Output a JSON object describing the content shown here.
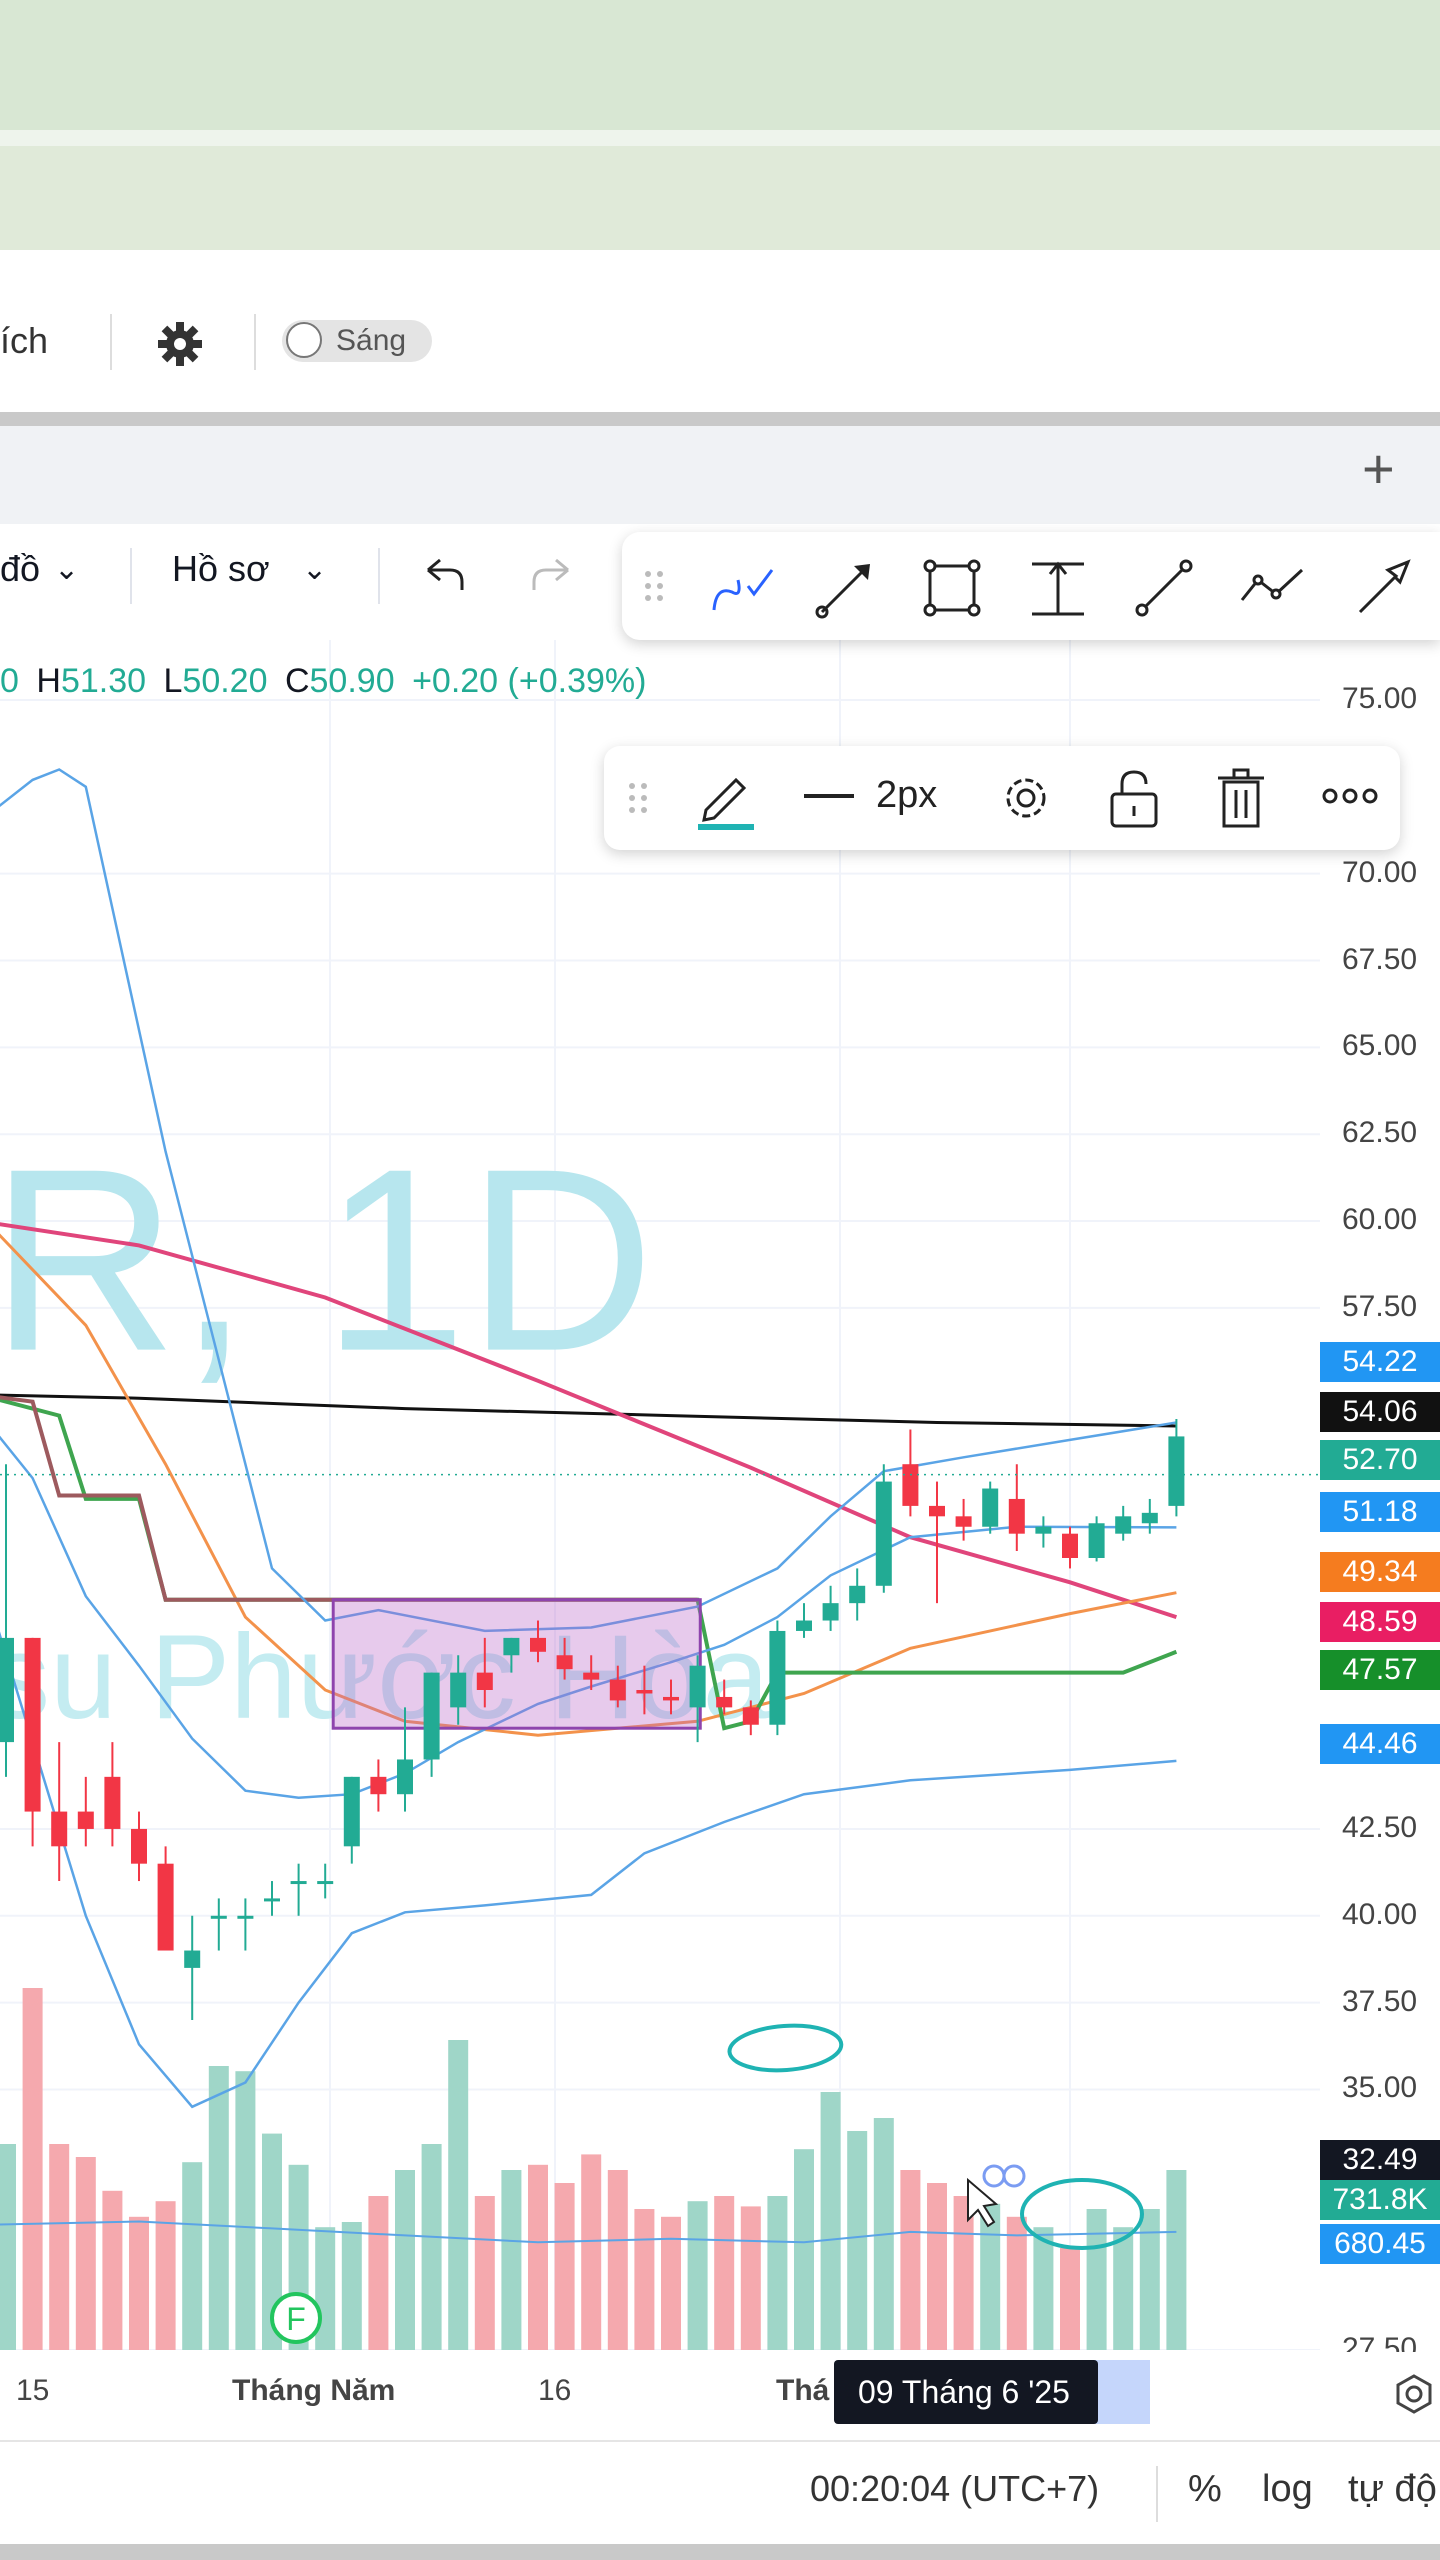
{
  "toolbar": {
    "left_text": "ích",
    "theme_toggle_label": "Sáng"
  },
  "tabbar": {
    "add_label": "+"
  },
  "chart_toolbar": {
    "chart_type_label": "đồ",
    "profile_label": "Hồ sơ",
    "undo_icon": "undo-icon",
    "redo_icon": "redo-icon"
  },
  "drawing_toolbar": {
    "icons": [
      "drag-handle-icon",
      "brush-icon",
      "arrow-line-icon",
      "rectangle-icon",
      "price-range-icon",
      "trend-line-icon",
      "path-icon",
      "arrow-icon"
    ]
  },
  "style_toolbar": {
    "line_width_label": "2px",
    "icons": [
      "pencil-icon",
      "line-style-icon",
      "settings-icon",
      "unlock-icon",
      "trash-icon",
      "more-icon"
    ],
    "pencil_color": "#1fb3b3"
  },
  "ohlc": {
    "open_tail": "0",
    "h_label": "H",
    "h_value": "51.30",
    "l_label": "L",
    "l_value": "50.20",
    "c_label": "C",
    "c_value": "50.90",
    "change": "+0.20 (+0.39%)"
  },
  "watermark": {
    "symbol": "R, 1D",
    "name": "su Phước Hòa"
  },
  "chart_data": {
    "type": "candlestick",
    "price_axis": {
      "ticks": [
        "75.00",
        "70.00",
        "67.50",
        "65.00",
        "62.50",
        "60.00",
        "57.50",
        "42.50",
        "40.00",
        "37.50",
        "35.00",
        "27.50"
      ],
      "range": [
        27.5,
        75.0
      ],
      "scale": "linear"
    },
    "price_labels": [
      {
        "value": "54.22",
        "color": "#2196f3"
      },
      {
        "value": "54.06",
        "color": "#111111"
      },
      {
        "value": "52.70",
        "color": "#22ab94"
      },
      {
        "value": "51.18",
        "color": "#2196f3"
      },
      {
        "value": "49.34",
        "color": "#f57c1f"
      },
      {
        "value": "48.59",
        "color": "#e91e63"
      },
      {
        "value": "47.57",
        "color": "#168f2a"
      },
      {
        "value": "44.46",
        "color": "#2196f3"
      },
      {
        "value": "32.49",
        "color": "#131722"
      },
      {
        "value": "731.8K",
        "color": "#22ab94"
      },
      {
        "value": "680.45",
        "color": "#2196f3"
      }
    ],
    "time_axis": {
      "ticks": [
        "15",
        "Tháng Năm",
        "16",
        "Thá"
      ],
      "crosshair_label": "09 Tháng 6 '25"
    },
    "candles": [
      [
        45,
        53,
        44,
        48
      ],
      [
        48,
        48,
        42,
        43
      ],
      [
        43,
        45,
        41,
        42
      ],
      [
        43,
        44,
        42,
        42.5
      ],
      [
        44,
        45,
        42,
        42.5
      ],
      [
        42.5,
        43,
        41,
        41.5
      ],
      [
        41.5,
        42,
        39,
        39
      ],
      [
        38.5,
        40,
        37,
        39
      ],
      [
        40,
        40.5,
        39,
        40
      ],
      [
        40,
        40.5,
        39,
        40
      ],
      [
        40.5,
        41,
        40,
        40.5
      ],
      [
        41,
        41.5,
        40,
        41
      ],
      [
        41,
        41.5,
        40.5,
        41
      ],
      [
        42,
        44,
        41.5,
        44
      ],
      [
        44,
        44.5,
        43,
        43.5
      ],
      [
        43.5,
        46,
        43,
        44.5
      ],
      [
        44.5,
        47,
        44,
        47
      ],
      [
        46,
        47.5,
        45.5,
        47
      ],
      [
        47,
        48,
        46,
        46.5
      ],
      [
        47.5,
        48,
        47,
        48
      ],
      [
        48,
        48.5,
        47.3,
        47.6
      ],
      [
        47.5,
        48,
        46.8,
        47.1
      ],
      [
        47,
        47.5,
        46.5,
        46.8
      ],
      [
        46.8,
        47.2,
        46,
        46.2
      ],
      [
        46.5,
        47.2,
        45.8,
        46.4
      ],
      [
        46.3,
        46.8,
        45.8,
        46.2
      ],
      [
        46,
        47.5,
        45,
        47.2
      ],
      [
        46.3,
        46.8,
        45.8,
        46.0
      ],
      [
        46,
        46.2,
        45.2,
        45.5
      ],
      [
        45.5,
        48.5,
        45.2,
        48.2
      ],
      [
        48.2,
        49,
        48,
        48.5
      ],
      [
        48.5,
        49.5,
        48.2,
        49.0
      ],
      [
        49,
        50,
        48.5,
        49.5
      ],
      [
        49.5,
        53,
        49.3,
        52.5
      ],
      [
        53,
        54,
        51.5,
        51.8
      ],
      [
        51.8,
        52.5,
        49,
        51.5
      ],
      [
        51.5,
        52,
        50.8,
        51.2
      ],
      [
        51.2,
        52.5,
        51,
        52.3
      ],
      [
        52,
        53,
        50.5,
        51
      ],
      [
        51,
        51.5,
        50.6,
        51.2
      ],
      [
        51,
        51.2,
        50,
        50.3
      ],
      [
        50.3,
        51.5,
        50.2,
        51.3
      ],
      [
        51,
        51.8,
        50.8,
        51.5
      ],
      [
        51.3,
        52,
        51,
        51.6
      ],
      [
        51.8,
        54.3,
        51.5,
        53.8
      ]
    ],
    "volume": [
      80,
      140,
      80,
      75,
      62,
      52,
      58,
      73,
      110,
      108,
      84,
      72,
      48,
      50,
      60,
      70,
      80,
      120,
      60,
      70,
      72,
      65,
      76,
      70,
      55,
      52,
      58,
      60,
      56,
      60,
      78,
      100,
      85,
      90,
      70,
      65,
      60,
      57,
      52,
      48,
      40,
      55,
      48,
      55,
      70
    ]
  },
  "status_bar": {
    "time": "00:20:04 (UTC+7)",
    "percent": "%",
    "log": "log",
    "auto": "tự độ"
  },
  "markers": {
    "f_label": "F"
  }
}
